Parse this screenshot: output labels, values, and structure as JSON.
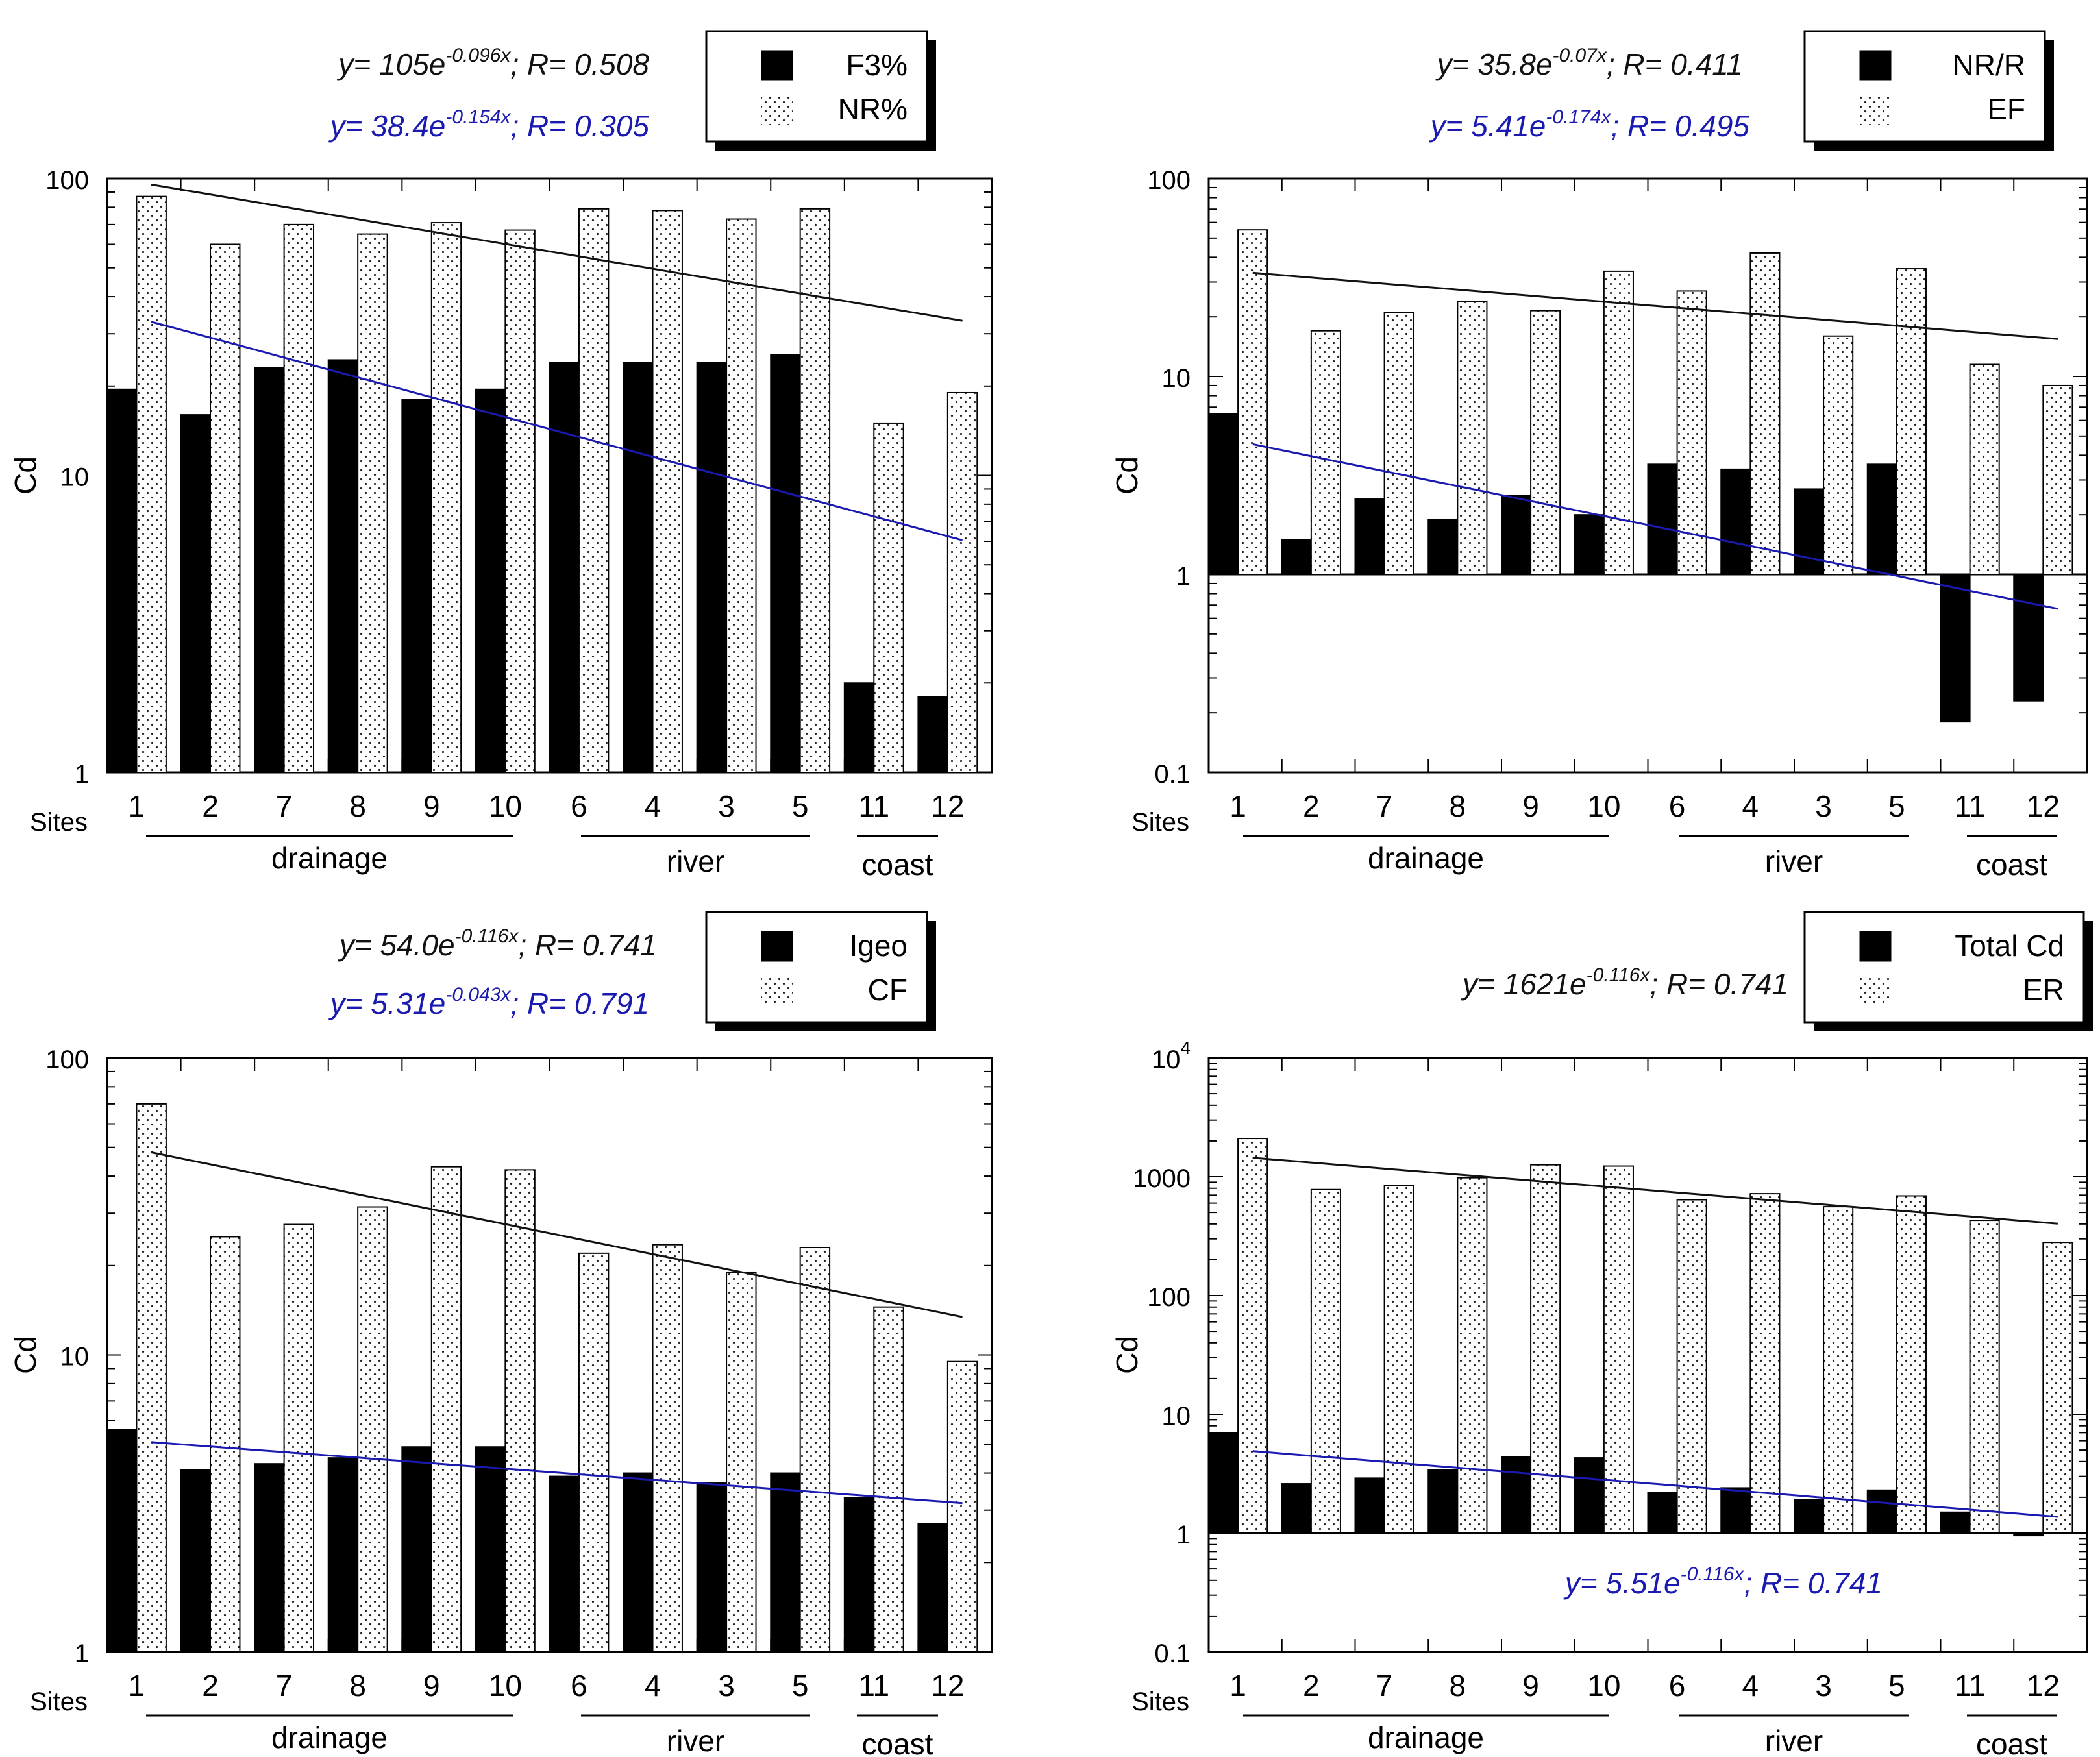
{
  "chart_data": [
    {
      "type": "bar",
      "title": "",
      "xlabel": "Sites",
      "ylabel": "Cd",
      "yscale": "log",
      "ylim": [
        1,
        100
      ],
      "yticks": [
        {
          "v": 1,
          "label": "1"
        },
        {
          "v": 10,
          "label": "10"
        },
        {
          "v": 100,
          "label": "100"
        }
      ],
      "categories": [
        "1",
        "2",
        "7",
        "8",
        "9",
        "10",
        "6",
        "4",
        "3",
        "5",
        "11",
        "12"
      ],
      "groups": [
        {
          "label": "drainage",
          "from": 0,
          "to": 5
        },
        {
          "label": "river",
          "from": 6,
          "to": 9
        },
        {
          "label": "coast",
          "from": 10,
          "to": 11
        }
      ],
      "series": [
        {
          "name": "F3%",
          "style": "solid",
          "values": [
            19.5,
            16,
            23,
            24.5,
            18,
            19.5,
            24,
            24,
            24,
            25.5,
            2,
            1.8
          ]
        },
        {
          "name": "NR%",
          "style": "dotted",
          "values": [
            87,
            60,
            70,
            65,
            71,
            67,
            79,
            78,
            73,
            79,
            15,
            19
          ]
        }
      ],
      "trendlines": [
        {
          "equation_base": "y= 105e",
          "equation_exp": "-0.096x",
          "r_text": "; R= 0.508",
          "color": "#111111",
          "a": 105,
          "b": -0.096
        },
        {
          "equation_base": "y= 38.4e",
          "equation_exp": "-0.154x",
          "r_text": "; R= 0.305",
          "color": "#1a1ab0",
          "a": 38.4,
          "b": -0.154
        }
      ],
      "legend_position": "top-right"
    },
    {
      "type": "bar",
      "title": "",
      "xlabel": "Sites",
      "ylabel": "Cd",
      "yscale": "log",
      "ylim": [
        0.1,
        100
      ],
      "yticks": [
        {
          "v": 0.1,
          "label": "0.1"
        },
        {
          "v": 1,
          "label": "1"
        },
        {
          "v": 10,
          "label": "10"
        },
        {
          "v": 100,
          "label": "100"
        }
      ],
      "categories": [
        "1",
        "2",
        "7",
        "8",
        "9",
        "10",
        "6",
        "4",
        "3",
        "5",
        "11",
        "12"
      ],
      "groups": [
        {
          "label": "drainage",
          "from": 0,
          "to": 5
        },
        {
          "label": "river",
          "from": 6,
          "to": 9
        },
        {
          "label": "coast",
          "from": 10,
          "to": 11
        }
      ],
      "series": [
        {
          "name": "NR/R",
          "style": "solid",
          "values": [
            6.5,
            1.5,
            2.4,
            1.9,
            2.5,
            2.0,
            3.6,
            3.4,
            2.7,
            3.6,
            0.18,
            0.23
          ]
        },
        {
          "name": "EF",
          "style": "dotted",
          "values": [
            55,
            17,
            21,
            24,
            21.5,
            34,
            27,
            42,
            16,
            35,
            11.5,
            9
          ]
        }
      ],
      "trendlines": [
        {
          "equation_base": "y= 35.8e",
          "equation_exp": "-0.07x",
          "r_text": "; R= 0.411",
          "color": "#111111",
          "a": 35.8,
          "b": -0.07
        },
        {
          "equation_base": "y= 5.41e",
          "equation_exp": "-0.174x",
          "r_text": "; R= 0.495",
          "color": "#1a1ab0",
          "a": 5.41,
          "b": -0.174
        }
      ],
      "legend_position": "top-right"
    },
    {
      "type": "bar",
      "title": "",
      "xlabel": "Sites",
      "ylabel": "Cd",
      "yscale": "log",
      "ylim": [
        1,
        100
      ],
      "yticks": [
        {
          "v": 1,
          "label": "1"
        },
        {
          "v": 10,
          "label": "10"
        },
        {
          "v": 100,
          "label": "100"
        }
      ],
      "categories": [
        "1",
        "2",
        "7",
        "8",
        "9",
        "10",
        "6",
        "4",
        "3",
        "5",
        "11",
        "12"
      ],
      "groups": [
        {
          "label": "drainage",
          "from": 0,
          "to": 5
        },
        {
          "label": "river",
          "from": 6,
          "to": 9
        },
        {
          "label": "coast",
          "from": 10,
          "to": 11
        }
      ],
      "series": [
        {
          "name": "Igeo",
          "style": "solid",
          "values": [
            5.6,
            4.1,
            4.3,
            4.5,
            4.9,
            4.9,
            3.9,
            4.0,
            3.7,
            4.0,
            3.3,
            2.7
          ]
        },
        {
          "name": "CF",
          "style": "dotted",
          "values": [
            70,
            25,
            27.5,
            31.5,
            43,
            42,
            22,
            23.5,
            19,
            23,
            14.5,
            9.5
          ]
        }
      ],
      "trendlines": [
        {
          "equation_base": "y= 54.0e",
          "equation_exp": "-0.116x",
          "r_text": "; R= 0.741",
          "color": "#111111",
          "a": 54.0,
          "b": -0.116
        },
        {
          "equation_base": "y= 5.31e",
          "equation_exp": "-0.043x",
          "r_text": "; R= 0.791",
          "color": "#1a1ab0",
          "a": 5.31,
          "b": -0.043
        }
      ],
      "legend_position": "top-right"
    },
    {
      "type": "bar",
      "title": "",
      "xlabel": "Sites",
      "ylabel": "Cd",
      "yscale": "log",
      "ylim": [
        0.1,
        10000
      ],
      "yticks": [
        {
          "v": 0.1,
          "label": "0.1"
        },
        {
          "v": 1,
          "label": "1"
        },
        {
          "v": 10,
          "label": "10"
        },
        {
          "v": 100,
          "label": "100"
        },
        {
          "v": 1000,
          "label": "1000"
        },
        {
          "v": 10000,
          "label": "10",
          "sup": "4"
        }
      ],
      "categories": [
        "1",
        "2",
        "7",
        "8",
        "9",
        "10",
        "6",
        "4",
        "3",
        "5",
        "11",
        "12"
      ],
      "groups": [
        {
          "label": "drainage",
          "from": 0,
          "to": 5
        },
        {
          "label": "river",
          "from": 6,
          "to": 9
        },
        {
          "label": "coast",
          "from": 10,
          "to": 11
        }
      ],
      "series": [
        {
          "name": "Total Cd",
          "style": "solid",
          "values": [
            7.0,
            2.6,
            2.9,
            3.4,
            4.4,
            4.3,
            2.2,
            2.4,
            1.9,
            2.3,
            1.5,
            0.95
          ]
        },
        {
          "name": "ER",
          "style": "dotted",
          "values": [
            2100,
            780,
            840,
            980,
            1260,
            1230,
            640,
            720,
            560,
            690,
            430,
            280
          ]
        }
      ],
      "trendlines": [
        {
          "equation_base": "y= 1621e",
          "equation_exp": "-0.116x",
          "r_text": "; R= 0.741",
          "color": "#111111",
          "a": 1621,
          "b": -0.116
        },
        {
          "equation_base": "y= 5.51e",
          "equation_exp": "-0.116x",
          "r_text": "; R= 0.741",
          "color": "#1a1ab0",
          "a": 5.51,
          "b": -0.116
        }
      ],
      "legend_position": "top-right"
    }
  ]
}
